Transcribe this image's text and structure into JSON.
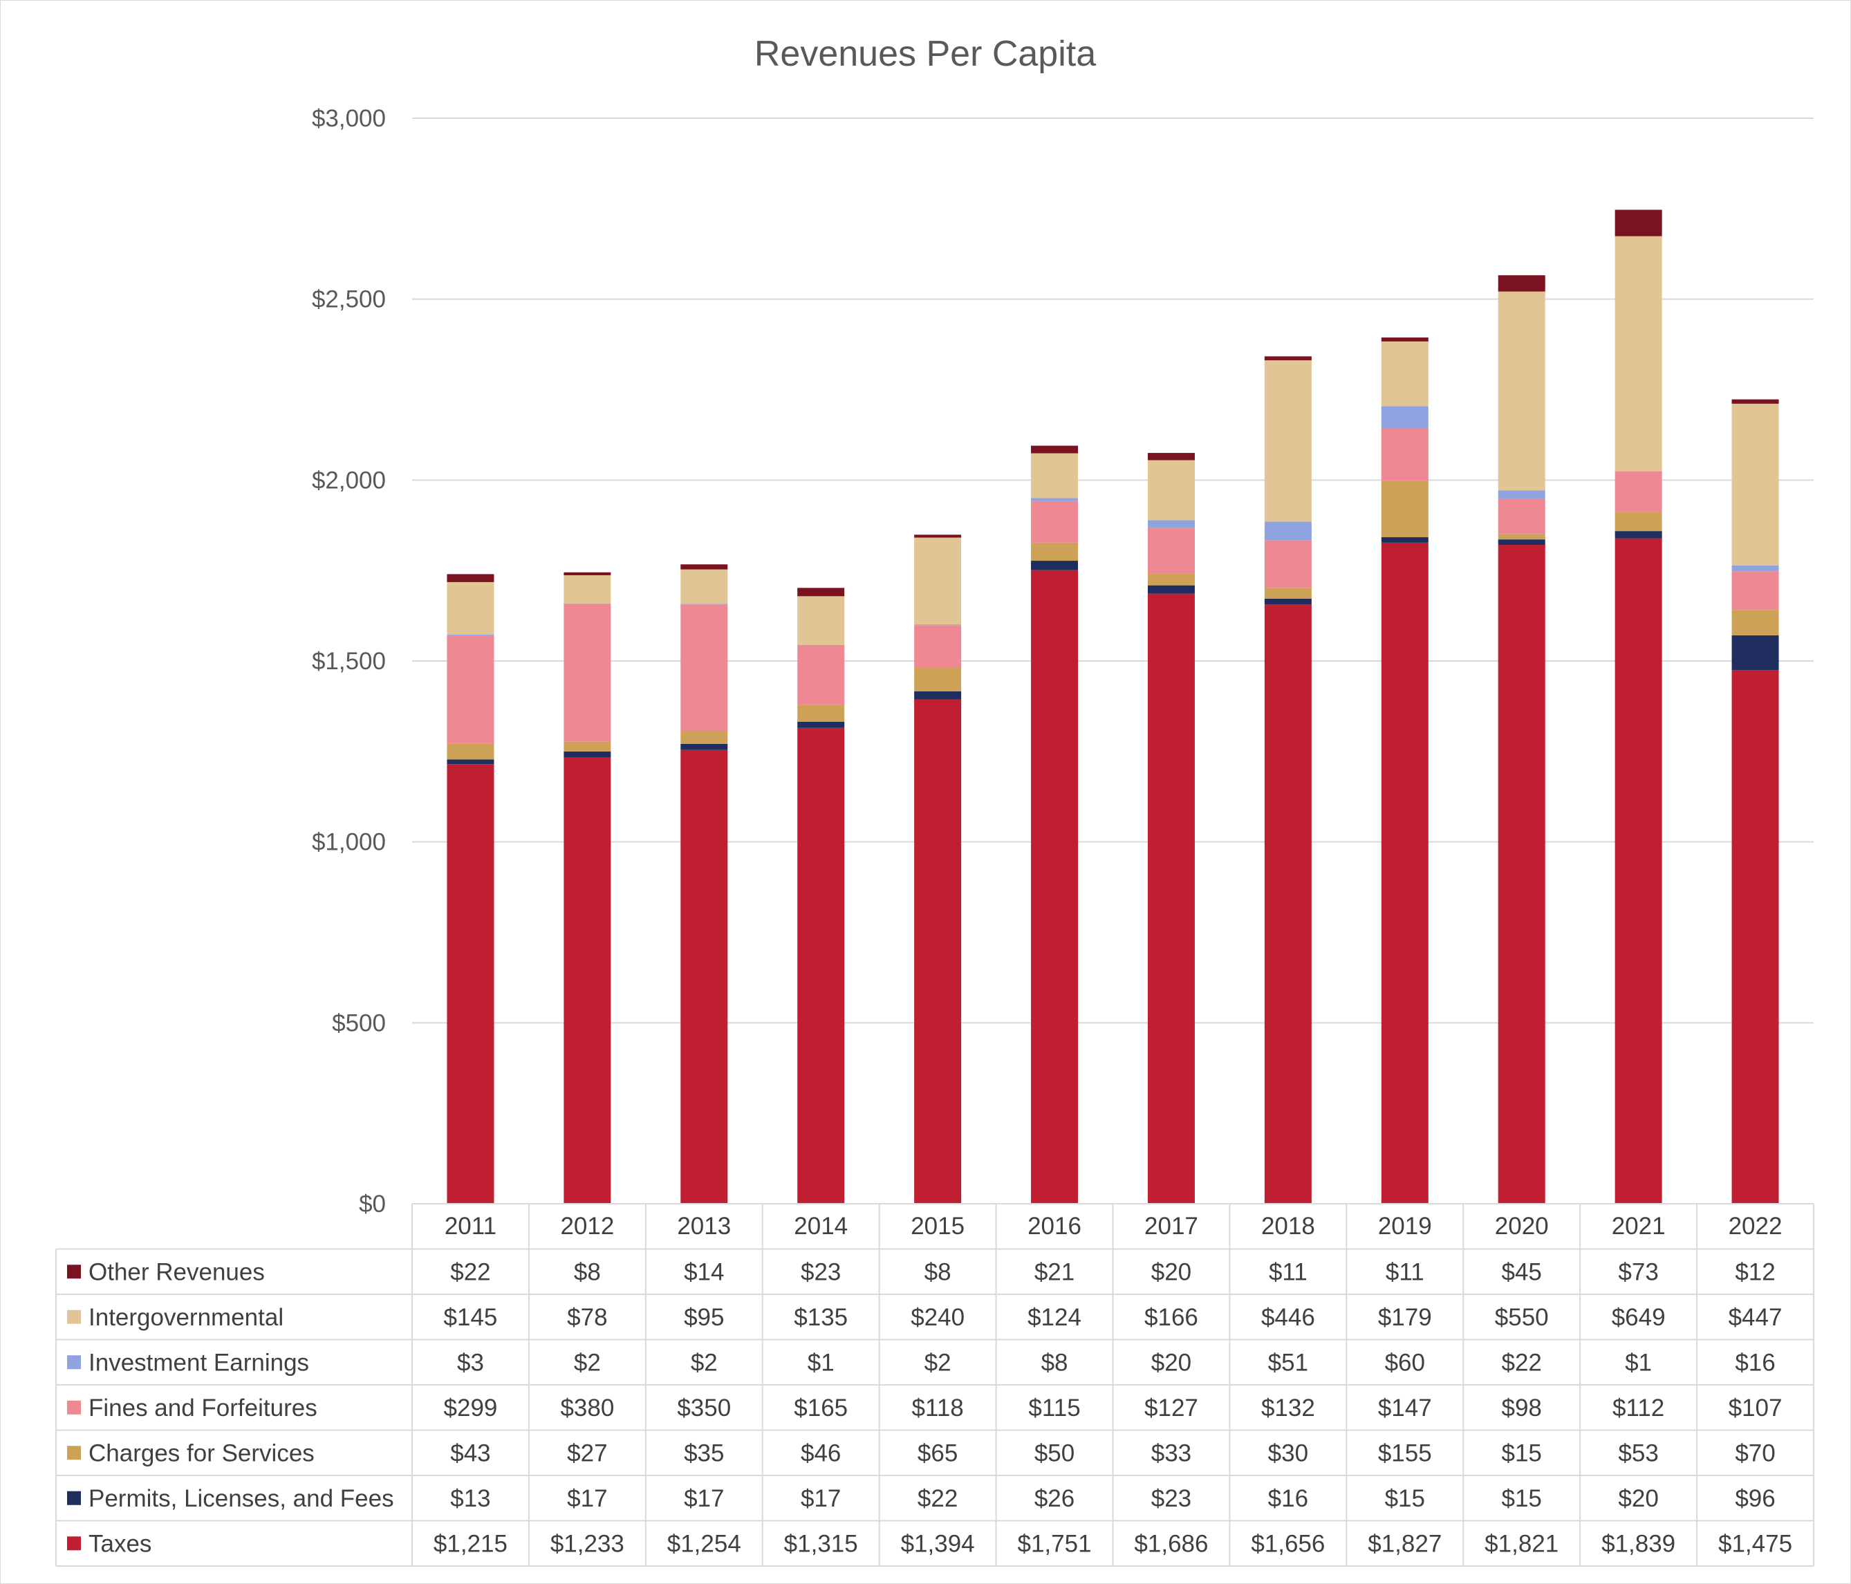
{
  "chart_data": {
    "type": "bar",
    "stacked": true,
    "title": "Revenues Per Capita",
    "xlabel": "",
    "ylabel": "",
    "ylim": [
      0,
      3000
    ],
    "yticks": [
      0,
      500,
      1000,
      1500,
      2000,
      2500,
      3000
    ],
    "ytick_labels": [
      "$0",
      "$500",
      "$1,000",
      "$1,500",
      "$2,000",
      "$2,500",
      "$3,000"
    ],
    "grid": true,
    "legend": "data-table-left",
    "categories": [
      "2011",
      "2012",
      "2013",
      "2014",
      "2015",
      "2016",
      "2017",
      "2018",
      "2019",
      "2020",
      "2021",
      "2022"
    ],
    "series": [
      {
        "name": "Taxes",
        "color": "#C01F32",
        "values": [
          1215,
          1233,
          1254,
          1315,
          1394,
          1751,
          1686,
          1656,
          1827,
          1821,
          1839,
          1475
        ],
        "labels": [
          "$1,215",
          "$1,233",
          "$1,254",
          "$1,315",
          "$1,394",
          "$1,751",
          "$1,686",
          "$1,656",
          "$1,827",
          "$1,821",
          "$1,839",
          "$1,475"
        ]
      },
      {
        "name": "Permits, Licenses, and Fees",
        "color": "#1F2D5F",
        "values": [
          13,
          17,
          17,
          17,
          22,
          26,
          23,
          16,
          15,
          15,
          20,
          96
        ],
        "labels": [
          "$13",
          "$17",
          "$17",
          "$17",
          "$22",
          "$26",
          "$23",
          "$16",
          "$15",
          "$15",
          "$20",
          "$96"
        ]
      },
      {
        "name": "Charges for Services",
        "color": "#CEA256",
        "values": [
          43,
          27,
          35,
          46,
          65,
          50,
          33,
          30,
          155,
          15,
          53,
          70
        ],
        "labels": [
          "$43",
          "$27",
          "$35",
          "$46",
          "$65",
          "$50",
          "$33",
          "$30",
          "$155",
          "$15",
          "$53",
          "$70"
        ]
      },
      {
        "name": "Fines and Forfeitures",
        "color": "#EE8893",
        "values": [
          299,
          380,
          350,
          165,
          118,
          115,
          127,
          132,
          147,
          98,
          112,
          107
        ],
        "labels": [
          "$299",
          "$380",
          "$350",
          "$165",
          "$118",
          "$115",
          "$127",
          "$132",
          "$147",
          "$98",
          "$112",
          "$107"
        ]
      },
      {
        "name": "Investment Earnings",
        "color": "#8EA3E0",
        "values": [
          3,
          2,
          2,
          1,
          2,
          8,
          20,
          51,
          60,
          22,
          1,
          16
        ],
        "labels": [
          "$3",
          "$2",
          "$2",
          "$1",
          "$2",
          "$8",
          "$20",
          "$51",
          "$60",
          "$22",
          "$1",
          "$16"
        ]
      },
      {
        "name": "Intergovernmental",
        "color": "#E1C594",
        "values": [
          145,
          78,
          95,
          135,
          240,
          124,
          166,
          446,
          179,
          550,
          649,
          447
        ],
        "labels": [
          "$145",
          "$78",
          "$95",
          "$135",
          "$240",
          "$124",
          "$166",
          "$446",
          "$179",
          "$550",
          "$649",
          "$447"
        ]
      },
      {
        "name": "Other Revenues",
        "color": "#7B1220",
        "values": [
          22,
          8,
          14,
          23,
          8,
          21,
          20,
          11,
          11,
          45,
          73,
          12
        ],
        "labels": [
          "$22",
          "$8",
          "$14",
          "$23",
          "$8",
          "$21",
          "$20",
          "$11",
          "$11",
          "$45",
          "$73",
          "$12"
        ]
      }
    ]
  }
}
